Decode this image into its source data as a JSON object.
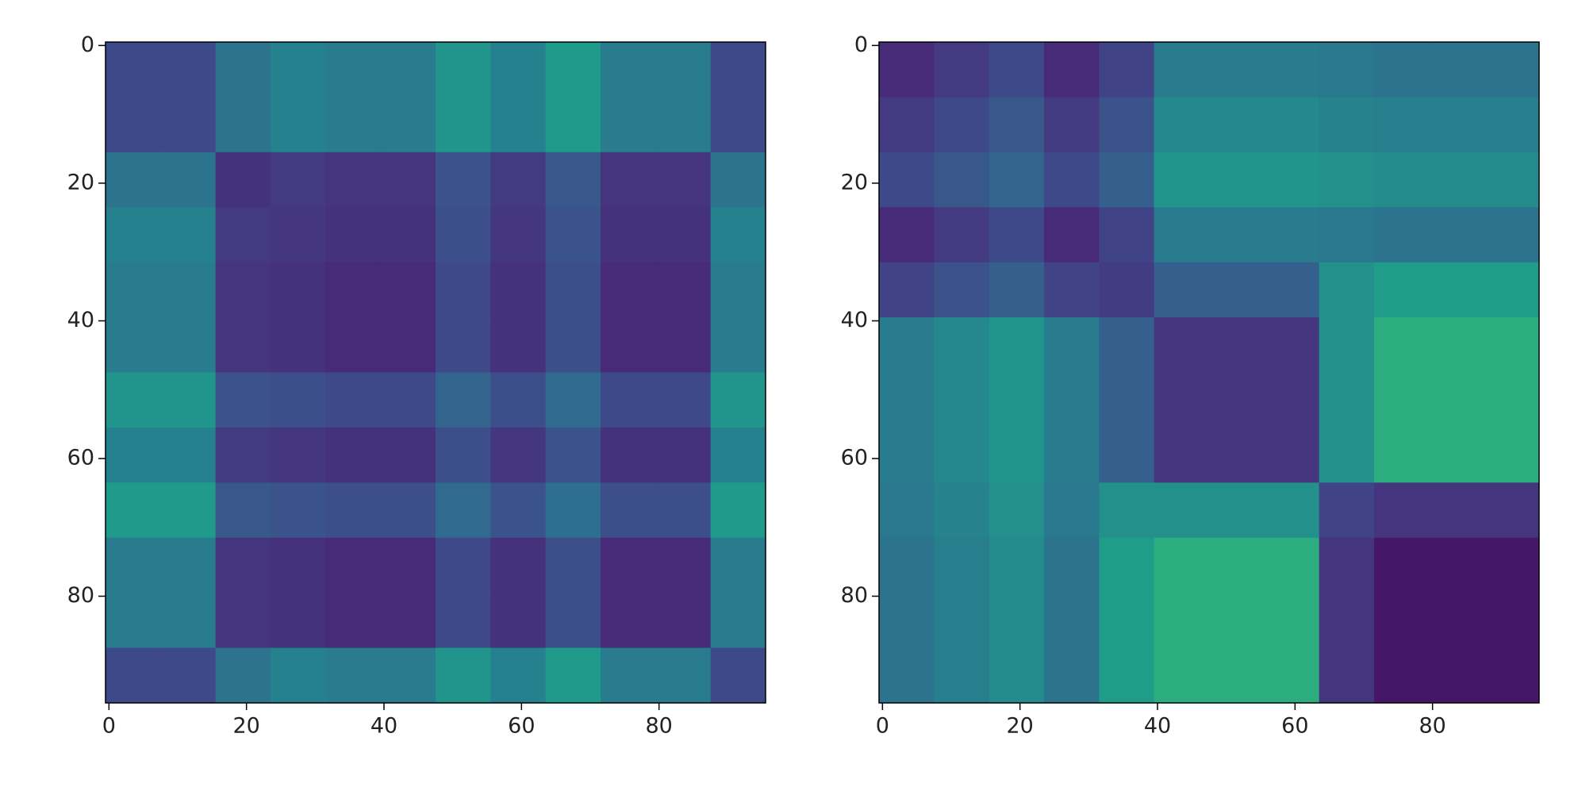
{
  "chart_data": [
    {
      "type": "heatmap",
      "xbins": [
        -0.5,
        7.5,
        15.5,
        23.5,
        31.5,
        39.5,
        47.5,
        55.5,
        63.5,
        71.5,
        79.5,
        87.5,
        95.5
      ],
      "ybins": [
        -0.5,
        7.5,
        15.5,
        23.5,
        31.5,
        39.5,
        47.5,
        55.5,
        63.5,
        71.5,
        79.5,
        87.5,
        95.5
      ],
      "values": [
        [
          0.22,
          0.22,
          0.38,
          0.44,
          0.42,
          0.42,
          0.52,
          0.44,
          0.54,
          0.42,
          0.42,
          0.22
        ],
        [
          0.22,
          0.22,
          0.38,
          0.44,
          0.42,
          0.42,
          0.52,
          0.44,
          0.54,
          0.42,
          0.42,
          0.22
        ],
        [
          0.38,
          0.38,
          0.14,
          0.17,
          0.15,
          0.15,
          0.25,
          0.17,
          0.27,
          0.15,
          0.15,
          0.38
        ],
        [
          0.44,
          0.44,
          0.17,
          0.16,
          0.14,
          0.14,
          0.24,
          0.16,
          0.26,
          0.14,
          0.14,
          0.44
        ],
        [
          0.42,
          0.42,
          0.15,
          0.14,
          0.12,
          0.12,
          0.22,
          0.14,
          0.24,
          0.12,
          0.12,
          0.42
        ],
        [
          0.42,
          0.42,
          0.15,
          0.14,
          0.12,
          0.12,
          0.22,
          0.14,
          0.24,
          0.12,
          0.12,
          0.42
        ],
        [
          0.52,
          0.52,
          0.25,
          0.24,
          0.22,
          0.22,
          0.32,
          0.24,
          0.34,
          0.22,
          0.22,
          0.52
        ],
        [
          0.44,
          0.44,
          0.17,
          0.16,
          0.14,
          0.14,
          0.24,
          0.16,
          0.26,
          0.14,
          0.14,
          0.44
        ],
        [
          0.54,
          0.54,
          0.27,
          0.26,
          0.24,
          0.24,
          0.34,
          0.26,
          0.36,
          0.24,
          0.24,
          0.54
        ],
        [
          0.42,
          0.42,
          0.15,
          0.14,
          0.12,
          0.12,
          0.22,
          0.14,
          0.24,
          0.12,
          0.12,
          0.42
        ],
        [
          0.42,
          0.42,
          0.15,
          0.14,
          0.12,
          0.12,
          0.22,
          0.14,
          0.24,
          0.12,
          0.12,
          0.42
        ],
        [
          0.22,
          0.22,
          0.38,
          0.44,
          0.42,
          0.42,
          0.52,
          0.44,
          0.54,
          0.42,
          0.42,
          0.22
        ]
      ],
      "colormap": "viridis",
      "xlim": [
        -0.5,
        95.5
      ],
      "ylim": [
        95.5,
        -0.5
      ],
      "xticks": [
        0,
        20,
        40,
        60,
        80
      ],
      "yticks": [
        0,
        20,
        40,
        60,
        80
      ]
    },
    {
      "type": "heatmap",
      "xbins": [
        -0.5,
        7.5,
        15.5,
        23.5,
        31.5,
        39.5,
        47.5,
        55.5,
        63.5,
        71.5,
        79.5,
        87.5,
        95.5
      ],
      "ybins": [
        -0.5,
        7.5,
        15.5,
        23.5,
        31.5,
        39.5,
        47.5,
        55.5,
        63.5,
        71.5,
        79.5,
        87.5,
        95.5
      ],
      "values": [
        [
          0.12,
          0.17,
          0.22,
          0.12,
          0.2,
          0.42,
          0.42,
          0.42,
          0.4,
          0.38,
          0.38,
          0.38
        ],
        [
          0.17,
          0.22,
          0.27,
          0.17,
          0.25,
          0.47,
          0.47,
          0.47,
          0.45,
          0.43,
          0.43,
          0.43
        ],
        [
          0.22,
          0.27,
          0.32,
          0.22,
          0.3,
          0.52,
          0.52,
          0.52,
          0.5,
          0.48,
          0.48,
          0.48
        ],
        [
          0.12,
          0.17,
          0.22,
          0.12,
          0.2,
          0.42,
          0.42,
          0.42,
          0.4,
          0.38,
          0.38,
          0.38
        ],
        [
          0.2,
          0.25,
          0.3,
          0.2,
          0.18,
          0.3,
          0.3,
          0.3,
          0.5,
          0.55,
          0.55,
          0.55
        ],
        [
          0.42,
          0.47,
          0.52,
          0.42,
          0.3,
          0.15,
          0.15,
          0.15,
          0.5,
          0.62,
          0.62,
          0.62
        ],
        [
          0.42,
          0.47,
          0.52,
          0.42,
          0.3,
          0.15,
          0.15,
          0.15,
          0.5,
          0.62,
          0.62,
          0.62
        ],
        [
          0.42,
          0.47,
          0.52,
          0.42,
          0.3,
          0.15,
          0.15,
          0.15,
          0.5,
          0.62,
          0.62,
          0.62
        ],
        [
          0.4,
          0.45,
          0.5,
          0.4,
          0.5,
          0.5,
          0.5,
          0.5,
          0.2,
          0.15,
          0.15,
          0.15
        ],
        [
          0.38,
          0.43,
          0.48,
          0.38,
          0.55,
          0.62,
          0.62,
          0.62,
          0.15,
          0.06,
          0.06,
          0.06
        ],
        [
          0.38,
          0.43,
          0.48,
          0.38,
          0.55,
          0.62,
          0.62,
          0.62,
          0.15,
          0.06,
          0.06,
          0.06
        ],
        [
          0.38,
          0.43,
          0.48,
          0.38,
          0.55,
          0.62,
          0.62,
          0.62,
          0.15,
          0.06,
          0.06,
          0.06
        ]
      ],
      "colormap": "viridis",
      "xlim": [
        -0.5,
        95.5
      ],
      "ylim": [
        95.5,
        -0.5
      ],
      "xticks": [
        0,
        20,
        40,
        60,
        80
      ],
      "yticks": [
        0,
        20,
        40,
        60,
        80
      ]
    }
  ]
}
